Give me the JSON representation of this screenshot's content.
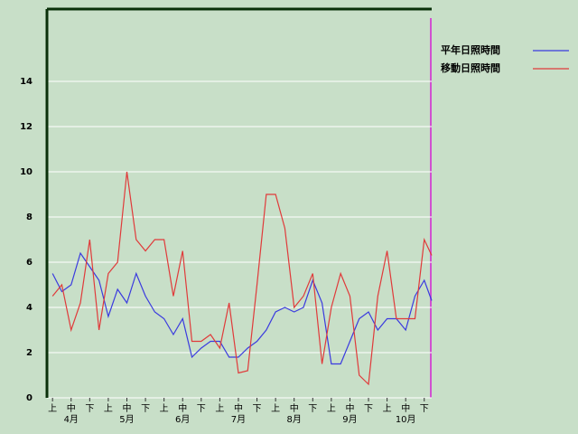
{
  "chart_data": {
    "type": "line",
    "x": [
      0,
      0.5,
      1,
      1.5,
      2,
      2.5,
      3,
      3.5,
      4,
      4.5,
      5,
      5.5,
      6,
      6.5,
      7,
      7.5,
      8,
      8.5,
      9,
      9.5,
      10,
      10.5,
      11,
      11.5,
      12,
      12.5,
      13,
      13.5,
      14,
      14.5,
      15,
      15.5,
      16,
      16.5,
      17,
      17.5,
      18,
      18.5,
      19,
      19.5,
      20,
      20.4
    ],
    "series": [
      {
        "name": "平年日照時間",
        "color": "#3a3adf",
        "values": [
          5.5,
          4.7,
          5.0,
          6.4,
          5.8,
          5.2,
          3.6,
          4.8,
          4.2,
          5.5,
          4.5,
          3.8,
          3.5,
          2.8,
          3.5,
          1.8,
          2.2,
          2.5,
          2.5,
          1.8,
          1.8,
          2.2,
          2.5,
          3.0,
          3.8,
          4.0,
          3.8,
          4.0,
          5.2,
          4.2,
          1.5,
          1.5,
          2.5,
          3.5,
          3.8,
          3.0,
          3.5,
          3.5,
          3.0,
          4.5,
          5.2,
          4.3
        ]
      },
      {
        "name": "移動日照時間",
        "color": "#e03a3a",
        "values": [
          4.5,
          5.0,
          3.0,
          4.2,
          7.0,
          3.0,
          5.5,
          6.0,
          10.0,
          7.0,
          6.5,
          7.0,
          7.0,
          4.5,
          6.5,
          2.5,
          2.5,
          2.8,
          2.2,
          4.2,
          1.1,
          1.2,
          5.0,
          9.0,
          9.0,
          7.5,
          4.0,
          4.5,
          5.5,
          1.5,
          4.0,
          5.5,
          4.5,
          1.0,
          0.6,
          4.5,
          6.5,
          3.5,
          3.5,
          3.5,
          7.0,
          6.3
        ]
      }
    ],
    "xlim": [
      -0.3,
      20.4
    ],
    "xticks": [
      {
        "value": 0,
        "label": "上"
      },
      {
        "value": 1,
        "label": "中"
      },
      {
        "value": 2,
        "label": "下"
      },
      {
        "value": 3,
        "label": "上"
      },
      {
        "value": 4,
        "label": "中"
      },
      {
        "value": 5,
        "label": "下"
      },
      {
        "value": 6,
        "label": "上"
      },
      {
        "value": 7,
        "label": "中"
      },
      {
        "value": 8,
        "label": "下"
      },
      {
        "value": 9,
        "label": "上"
      },
      {
        "value": 10,
        "label": "中"
      },
      {
        "value": 11,
        "label": "下"
      },
      {
        "value": 12,
        "label": "上"
      },
      {
        "value": 13,
        "label": "中"
      },
      {
        "value": 14,
        "label": "下"
      },
      {
        "value": 15,
        "label": "上"
      },
      {
        "value": 16,
        "label": "中"
      },
      {
        "value": 17,
        "label": "下"
      },
      {
        "value": 18,
        "label": "上"
      },
      {
        "value": 19,
        "label": "中"
      },
      {
        "value": 20,
        "label": "下"
      }
    ],
    "month_ticks": [
      {
        "value": 1,
        "label": "4月"
      },
      {
        "value": 4,
        "label": "5月"
      },
      {
        "value": 7,
        "label": "6月"
      },
      {
        "value": 10,
        "label": "7月"
      },
      {
        "value": 13,
        "label": "8月"
      },
      {
        "value": 16,
        "label": "9月"
      },
      {
        "value": 19,
        "label": "10月"
      }
    ],
    "ylim": [
      0,
      17.2
    ],
    "yticks": [
      0,
      2,
      4,
      6,
      8,
      10,
      12,
      14
    ],
    "grid": true
  }
}
